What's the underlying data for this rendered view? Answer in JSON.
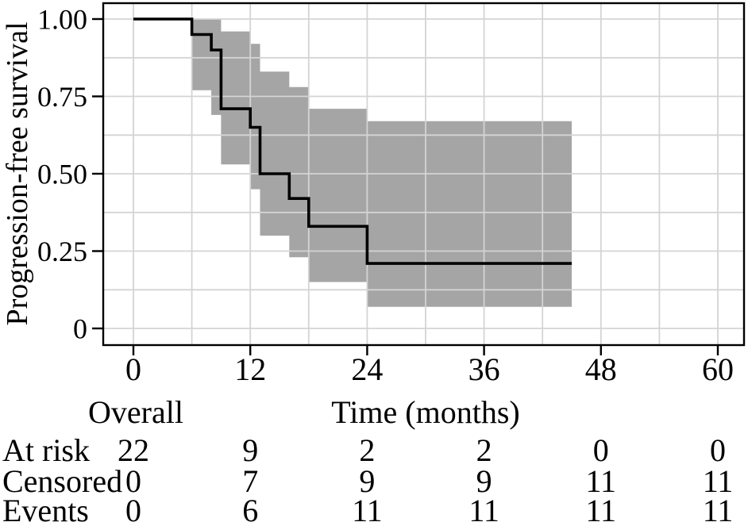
{
  "chart_data": {
    "type": "line",
    "subtype": "kaplan-meier-step-curve-with-confidence-band",
    "title": "",
    "xlabel": "Time (months)",
    "ylabel": "Progression-free survival",
    "xlim": [
      -3.1,
      62.7
    ],
    "ylim": [
      -0.054,
      1.051
    ],
    "grid": "on; light gray; vertical lines every 6 months, horizontal lines every 0.125",
    "legend_position": "none",
    "x_ticks": [
      {
        "value": 0,
        "label": "0"
      },
      {
        "value": 12,
        "label": "12"
      },
      {
        "value": 24,
        "label": "24"
      },
      {
        "value": 36,
        "label": "36"
      },
      {
        "value": 48,
        "label": "48"
      },
      {
        "value": 60,
        "label": "60"
      }
    ],
    "y_ticks": [
      {
        "value": 1.0,
        "label": "1.00"
      },
      {
        "value": 0.75,
        "label": "0.75"
      },
      {
        "value": 0.5,
        "label": "0.50"
      },
      {
        "value": 0.25,
        "label": "0.25"
      },
      {
        "value": 0.0,
        "label": "0"
      }
    ],
    "series": [
      {
        "name": "Overall",
        "type": "step",
        "points": [
          [
            0,
            1.0
          ],
          [
            6,
            0.95
          ],
          [
            8,
            0.9
          ],
          [
            9,
            0.71
          ],
          [
            12,
            0.65
          ],
          [
            13,
            0.5
          ],
          [
            16,
            0.42
          ],
          [
            18,
            0.33
          ],
          [
            24,
            0.21
          ]
        ],
        "end_time": 45
      }
    ],
    "ci_band": [
      {
        "t0": 6,
        "t1": 8,
        "lower": 0.77,
        "upper": 1.0
      },
      {
        "t0": 8,
        "t1": 9,
        "lower": 0.69,
        "upper": 1.0
      },
      {
        "t0": 9,
        "t1": 12,
        "lower": 0.53,
        "upper": 0.96
      },
      {
        "t0": 12,
        "t1": 13,
        "lower": 0.45,
        "upper": 0.92
      },
      {
        "t0": 13,
        "t1": 16,
        "lower": 0.3,
        "upper": 0.83
      },
      {
        "t0": 16,
        "t1": 18,
        "lower": 0.23,
        "upper": 0.78
      },
      {
        "t0": 18,
        "t1": 24,
        "lower": 0.15,
        "upper": 0.71
      },
      {
        "t0": 24,
        "t1": 45,
        "lower": 0.07,
        "upper": 0.67
      }
    ],
    "colors": {
      "curve": "#000000",
      "band": "#a5a5a5",
      "grid": "#d4d4d4",
      "text": "#000000",
      "background": "#ffffff"
    },
    "risk_table": {
      "group_label": "Overall",
      "time_axis_label": "Time (months)",
      "times": [
        0,
        12,
        24,
        36,
        48,
        60
      ],
      "rows": [
        {
          "label": "At risk",
          "values": [
            "22",
            "9",
            "2",
            "2",
            "0",
            "0"
          ]
        },
        {
          "label": "Censored",
          "values": [
            "0",
            "7",
            "9",
            "9",
            "11",
            "11"
          ]
        },
        {
          "label": "Events",
          "values": [
            "0",
            "6",
            "11",
            "11",
            "11",
            "11"
          ]
        }
      ]
    }
  }
}
